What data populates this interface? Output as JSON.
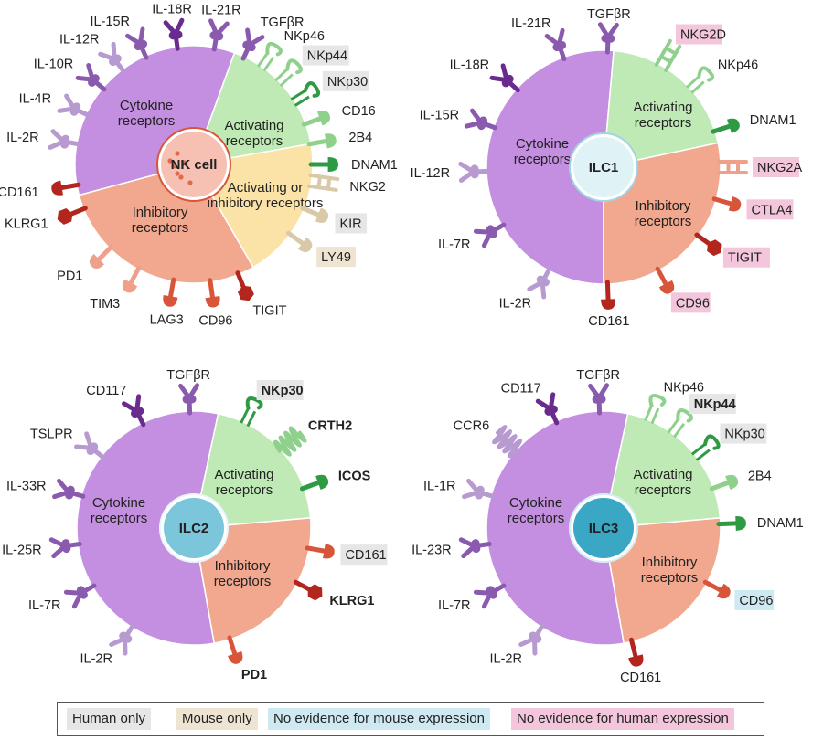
{
  "colors": {
    "cytokine": "#c48fe0",
    "activating": "#bfeab5",
    "inhibitory": "#f2a88f",
    "mixed": "#fbe3a8",
    "human_only": "#e6e6e6",
    "mouse_only": "#efe4d2",
    "no_mouse": "#cfe9f3",
    "no_human": "#f4c6dc",
    "purple_dark": "#6a2b8f",
    "purple_mid": "#8a5aae",
    "purple_light": "#b79ad0",
    "green_dark": "#2f9a44",
    "green_light": "#8fd08c",
    "red_dark": "#b3261e",
    "red_mid": "#d9553a",
    "red_light": "#eea08a",
    "tan": "#d9c9a8"
  },
  "legend": [
    {
      "label": "Human only",
      "color_key": "human_only"
    },
    {
      "label": "Mouse only",
      "color_key": "mouse_only"
    },
    {
      "label": "No evidence for mouse expression",
      "color_key": "no_mouse"
    },
    {
      "label": "No evidence for human expression",
      "color_key": "no_human"
    }
  ],
  "cells": [
    {
      "name": "NK cell",
      "nucleus_style": "nk",
      "sections": [
        {
          "label": "Cytokine receptors",
          "color_key": "cytokine"
        },
        {
          "label": "Activating receptors",
          "color_key": "activating"
        },
        {
          "label": "Activating or inhibitory receptors",
          "color_key": "mixed"
        },
        {
          "label": "Inhibitory receptors",
          "color_key": "inhibitory"
        }
      ],
      "receptors": [
        {
          "label": "IL-18R",
          "shape": "y",
          "color_key": "purple_dark",
          "bold": false,
          "highlight": null
        },
        {
          "label": "IL-21R",
          "shape": "y",
          "color_key": "purple_mid",
          "bold": false,
          "highlight": null
        },
        {
          "label": "TGFβR",
          "shape": "y",
          "color_key": "purple_mid",
          "bold": false,
          "highlight": null
        },
        {
          "label": "NKp46",
          "shape": "hook",
          "color_key": "green_light",
          "bold": false,
          "highlight": null
        },
        {
          "label": "NKp44",
          "shape": "hook",
          "color_key": "green_light",
          "bold": false,
          "highlight": "human_only"
        },
        {
          "label": "NKp30",
          "shape": "hook",
          "color_key": "green_dark",
          "bold": false,
          "highlight": "human_only"
        },
        {
          "label": "CD16",
          "shape": "stalk",
          "color_key": "green_light",
          "bold": false,
          "highlight": null
        },
        {
          "label": "2B4",
          "shape": "stalk",
          "color_key": "green_light",
          "bold": false,
          "highlight": null
        },
        {
          "label": "DNAM1",
          "shape": "stalk",
          "color_key": "green_dark",
          "bold": false,
          "highlight": null
        },
        {
          "label": "NKG2",
          "shape": "ladder",
          "color_key": "tan",
          "bold": false,
          "highlight": null
        },
        {
          "label": "KIR",
          "shape": "stalk",
          "color_key": "tan",
          "bold": false,
          "highlight": "human_only"
        },
        {
          "label": "LY49",
          "shape": "stalk",
          "color_key": "tan",
          "bold": false,
          "highlight": "mouse_only"
        },
        {
          "label": "TIGIT",
          "shape": "hex",
          "color_key": "red_dark",
          "bold": false,
          "highlight": null
        },
        {
          "label": "CD96",
          "shape": "stalk",
          "color_key": "red_mid",
          "bold": false,
          "highlight": null
        },
        {
          "label": "LAG3",
          "shape": "stalk",
          "color_key": "red_mid",
          "bold": false,
          "highlight": null
        },
        {
          "label": "TIM3",
          "shape": "stalk",
          "color_key": "red_light",
          "bold": false,
          "highlight": null
        },
        {
          "label": "PD1",
          "shape": "stalk",
          "color_key": "red_light",
          "bold": false,
          "highlight": null
        },
        {
          "label": "KLRG1",
          "shape": "hex",
          "color_key": "red_dark",
          "bold": false,
          "highlight": null
        },
        {
          "label": "CD161",
          "shape": "stalk",
          "color_key": "red_dark",
          "bold": false,
          "highlight": null
        },
        {
          "label": "IL-2R",
          "shape": "y",
          "color_key": "purple_light",
          "bold": false,
          "highlight": null
        },
        {
          "label": "IL-4R",
          "shape": "y",
          "color_key": "purple_light",
          "bold": false,
          "highlight": null
        },
        {
          "label": "IL-10R",
          "shape": "y",
          "color_key": "purple_mid",
          "bold": false,
          "highlight": null
        },
        {
          "label": "IL-12R",
          "shape": "y",
          "color_key": "purple_light",
          "bold": false,
          "highlight": null
        },
        {
          "label": "IL-15R",
          "shape": "y",
          "color_key": "purple_mid",
          "bold": false,
          "highlight": null
        }
      ]
    },
    {
      "name": "ILC1",
      "nucleus_style": "ilc1",
      "sections": [
        {
          "label": "Cytokine receptors",
          "color_key": "cytokine"
        },
        {
          "label": "Activating receptors",
          "color_key": "activating"
        },
        {
          "label": "Inhibitory receptors",
          "color_key": "inhibitory"
        }
      ],
      "receptors": [
        {
          "label": "TGFβR",
          "shape": "y",
          "color_key": "purple_mid",
          "bold": false,
          "highlight": null
        },
        {
          "label": "NKG2D",
          "shape": "ladder",
          "color_key": "green_light",
          "bold": false,
          "highlight": "no_human"
        },
        {
          "label": "NKp46",
          "shape": "hook",
          "color_key": "green_light",
          "bold": false,
          "highlight": null
        },
        {
          "label": "DNAM1",
          "shape": "stalk",
          "color_key": "green_dark",
          "bold": false,
          "highlight": null
        },
        {
          "label": "NKG2A",
          "shape": "ladder",
          "color_key": "red_light",
          "bold": false,
          "highlight": "no_human"
        },
        {
          "label": "CTLA4",
          "shape": "stalk",
          "color_key": "red_mid",
          "bold": false,
          "highlight": "no_human"
        },
        {
          "label": "TIGIT",
          "shape": "hex",
          "color_key": "red_dark",
          "bold": false,
          "highlight": "no_human"
        },
        {
          "label": "CD96",
          "shape": "stalk",
          "color_key": "red_mid",
          "bold": false,
          "highlight": "no_human"
        },
        {
          "label": "CD161",
          "shape": "stalk",
          "color_key": "red_dark",
          "bold": false,
          "highlight": null
        },
        {
          "label": "IL-2R",
          "shape": "y",
          "color_key": "purple_light",
          "bold": false,
          "highlight": null
        },
        {
          "label": "IL-7R",
          "shape": "y",
          "color_key": "purple_mid",
          "bold": false,
          "highlight": null
        },
        {
          "label": "IL-12R",
          "shape": "y",
          "color_key": "purple_light",
          "bold": false,
          "highlight": null
        },
        {
          "label": "IL-15R",
          "shape": "y",
          "color_key": "purple_mid",
          "bold": false,
          "highlight": null
        },
        {
          "label": "IL-18R",
          "shape": "y",
          "color_key": "purple_dark",
          "bold": false,
          "highlight": null
        },
        {
          "label": "IL-21R",
          "shape": "y",
          "color_key": "purple_mid",
          "bold": false,
          "highlight": null
        }
      ]
    },
    {
      "name": "ILC2",
      "nucleus_style": "ilc2",
      "sections": [
        {
          "label": "Cytokine receptors",
          "color_key": "cytokine"
        },
        {
          "label": "Activating receptors",
          "color_key": "activating"
        },
        {
          "label": "Inhibitory receptors",
          "color_key": "inhibitory"
        }
      ],
      "receptors": [
        {
          "label": "TGFβR",
          "shape": "y",
          "color_key": "purple_mid",
          "bold": false,
          "highlight": null
        },
        {
          "label": "NKp30",
          "shape": "hook",
          "color_key": "green_dark",
          "bold": true,
          "highlight": "human_only"
        },
        {
          "label": "CRTH2",
          "shape": "coil",
          "color_key": "green_light",
          "bold": true,
          "highlight": null
        },
        {
          "label": "ICOS",
          "shape": "stalk",
          "color_key": "green_dark",
          "bold": true,
          "highlight": null
        },
        {
          "label": "CD161",
          "shape": "stalk",
          "color_key": "red_mid",
          "bold": false,
          "highlight": "human_only"
        },
        {
          "label": "KLRG1",
          "shape": "hex",
          "color_key": "red_dark",
          "bold": true,
          "highlight": null
        },
        {
          "label": "PD1",
          "shape": "stalk",
          "color_key": "red_mid",
          "bold": true,
          "highlight": null
        },
        {
          "label": "IL-2R",
          "shape": "y",
          "color_key": "purple_light",
          "bold": false,
          "highlight": null
        },
        {
          "label": "IL-7R",
          "shape": "y",
          "color_key": "purple_mid",
          "bold": false,
          "highlight": null
        },
        {
          "label": "IL-25R",
          "shape": "y",
          "color_key": "purple_mid",
          "bold": false,
          "highlight": null
        },
        {
          "label": "IL-33R",
          "shape": "y",
          "color_key": "purple_mid",
          "bold": false,
          "highlight": null
        },
        {
          "label": "TSLPR",
          "shape": "y",
          "color_key": "purple_light",
          "bold": false,
          "highlight": null
        },
        {
          "label": "CD117",
          "shape": "y",
          "color_key": "purple_dark",
          "bold": false,
          "highlight": null
        }
      ]
    },
    {
      "name": "ILC3",
      "nucleus_style": "ilc3",
      "sections": [
        {
          "label": "Cytokine receptors",
          "color_key": "cytokine"
        },
        {
          "label": "Activating receptors",
          "color_key": "activating"
        },
        {
          "label": "Inhibitory receptors",
          "color_key": "inhibitory"
        }
      ],
      "receptors": [
        {
          "label": "TGFβR",
          "shape": "y",
          "color_key": "purple_mid",
          "bold": false,
          "highlight": null
        },
        {
          "label": "NKp46",
          "shape": "hook",
          "color_key": "green_light",
          "bold": false,
          "highlight": null
        },
        {
          "label": "NKp44",
          "shape": "hook",
          "color_key": "green_light",
          "bold": true,
          "highlight": "human_only"
        },
        {
          "label": "NKp30",
          "shape": "hook",
          "color_key": "green_dark",
          "bold": false,
          "highlight": "human_only"
        },
        {
          "label": "2B4",
          "shape": "stalk",
          "color_key": "green_light",
          "bold": false,
          "highlight": null
        },
        {
          "label": "DNAM1",
          "shape": "stalk",
          "color_key": "green_dark",
          "bold": false,
          "highlight": null
        },
        {
          "label": "CD96",
          "shape": "stalk",
          "color_key": "red_mid",
          "bold": false,
          "highlight": "no_mouse"
        },
        {
          "label": "CD161",
          "shape": "stalk",
          "color_key": "red_dark",
          "bold": false,
          "highlight": null
        },
        {
          "label": "IL-2R",
          "shape": "y",
          "color_key": "purple_light",
          "bold": false,
          "highlight": null
        },
        {
          "label": "IL-7R",
          "shape": "y",
          "color_key": "purple_mid",
          "bold": false,
          "highlight": null
        },
        {
          "label": "IL-23R",
          "shape": "y",
          "color_key": "purple_mid",
          "bold": false,
          "highlight": null
        },
        {
          "label": "IL-1R",
          "shape": "y",
          "color_key": "purple_light",
          "bold": false,
          "highlight": null
        },
        {
          "label": "CCR6",
          "shape": "coil",
          "color_key": "purple_light",
          "bold": false,
          "highlight": null
        },
        {
          "label": "CD117",
          "shape": "y",
          "color_key": "purple_dark",
          "bold": false,
          "highlight": null
        }
      ]
    }
  ]
}
